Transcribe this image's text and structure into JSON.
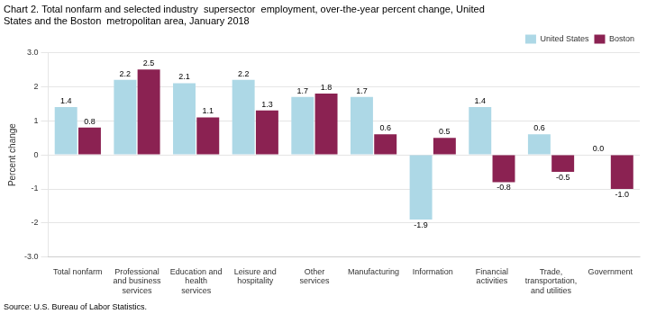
{
  "chart_data": {
    "type": "bar",
    "title": [
      "Chart 2. Total nonfarm and selected industry  supersector  employment, over-the-year percent change, United",
      "States and the Boston  metropolitan area, January 2018"
    ],
    "ylabel": "Percent change",
    "annotations": [
      "Source: U.S. Bureau of Labor Statistics."
    ],
    "categories": [
      "Total nonfarm",
      "Professional\nand business\nservices",
      "Education and\nhealth\nservices",
      "Leisure and\nhospitality",
      "Other\nservices",
      "Manufacturing",
      "Information",
      "Financial\nactivities",
      "Trade,\ntransportation,\nand utilities",
      "Government"
    ],
    "series": [
      {
        "name": "United States",
        "color": "#add8e6",
        "values": [
          1.4,
          2.2,
          2.1,
          2.2,
          1.7,
          1.7,
          -1.9,
          1.4,
          0.6,
          0.0
        ],
        "value_labels": [
          "1.4",
          "2.2",
          "2.1",
          "2.2",
          "1.7",
          "1.7",
          "-1.9",
          "1.4",
          "0.6",
          "0.0"
        ]
      },
      {
        "name": "Boston",
        "color": "#8B2252",
        "values": [
          0.8,
          2.5,
          1.1,
          1.3,
          1.8,
          0.6,
          0.5,
          -0.8,
          -0.5,
          -1.0
        ],
        "value_labels": [
          "0.8",
          "2.5",
          "1.1",
          "1.3",
          "1.8",
          "0.6",
          "0.5",
          "-0.8",
          "-0.5",
          "-1.0"
        ]
      }
    ],
    "ylim": [
      -3.0,
      3.0
    ],
    "yticks": [
      {
        "value": -3.0,
        "label": "-3.0"
      },
      -2,
      -1,
      0,
      1,
      2,
      {
        "value": 3.0,
        "label": "3.0"
      }
    ],
    "grid": true,
    "legend": "upper right",
    "data_labels": true
  }
}
